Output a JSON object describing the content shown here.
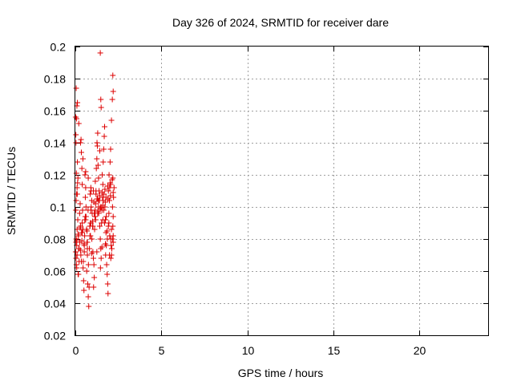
{
  "chart_data": {
    "type": "scatter",
    "title": "Day 326 of 2024, SRMTID for receiver dare",
    "xlabel": "GPS time / hours",
    "ylabel": "SRMTID / TECUs",
    "xlim": [
      0,
      24
    ],
    "ylim": [
      0.02,
      0.2
    ],
    "xticks": [
      0,
      5,
      10,
      15,
      20
    ],
    "yticks": [
      0.02,
      0.04,
      0.06,
      0.08,
      0.1,
      0.12,
      0.14,
      0.16,
      0.18,
      0.2
    ],
    "xtick_labels": [
      "0",
      "5",
      "10",
      "15",
      "20"
    ],
    "ytick_labels": [
      "0.02",
      "0.04",
      "0.06",
      "0.08",
      "0.1",
      "0.12",
      "0.14",
      "0.16",
      "0.18",
      "0.2"
    ],
    "grid": true,
    "marker": "+",
    "color": "#dd0000",
    "series": [
      {
        "x": [
          0.02,
          0.04,
          0.06,
          0.05,
          0.08,
          0.1,
          0.03,
          0.07,
          0.09,
          0.12,
          0.15,
          0.11,
          0.14,
          0.18,
          0.2,
          0.22,
          0.16,
          0.25,
          0.28,
          0.3,
          0.26,
          0.32,
          0.35,
          0.33,
          0.38,
          0.4,
          0.42,
          0.36,
          0.45,
          0.48,
          0.5,
          0.46,
          0.52,
          0.55,
          0.58,
          0.6,
          0.56,
          0.62,
          0.65,
          0.68,
          0.7,
          0.66,
          0.72,
          0.75,
          0.78,
          0.8,
          0.76,
          0.82,
          0.85,
          0.88,
          0.9,
          0.86,
          0.92,
          0.95,
          0.98,
          1.0,
          0.96,
          1.02,
          1.05,
          1.08,
          1.1,
          1.06,
          1.12,
          1.15,
          1.18,
          1.2,
          1.16,
          1.22,
          1.25,
          1.28,
          1.3,
          1.26,
          1.32,
          1.35,
          1.38,
          1.4,
          1.36,
          1.42,
          1.45,
          1.48,
          1.5,
          1.46,
          1.52,
          1.55,
          1.58,
          1.6,
          1.56,
          1.62,
          1.65,
          1.68,
          1.7,
          1.66,
          1.72,
          1.75,
          1.78,
          1.8,
          1.76,
          1.82,
          1.85,
          1.88,
          1.9,
          1.86,
          1.92,
          1.95,
          1.98,
          2.0,
          1.96,
          2.02,
          2.05,
          2.08,
          2.1,
          2.06,
          2.12,
          2.15,
          2.18,
          2.2,
          2.16,
          2.22,
          2.25,
          0.05,
          0.12,
          0.2,
          0.3,
          0.44,
          0.6,
          0.75,
          0.9,
          1.05,
          1.2,
          1.35,
          1.5,
          1.65,
          1.8,
          1.95,
          2.1,
          2.2,
          0.08,
          0.18,
          0.35,
          0.52,
          0.7,
          0.88,
          1.02,
          1.18,
          1.32,
          1.48,
          1.62,
          1.78,
          1.92,
          2.05,
          2.18,
          0.04,
          0.16,
          0.28,
          0.4,
          0.58,
          0.74,
          0.92,
          1.08,
          1.26,
          1.42,
          1.56,
          1.72,
          1.88,
          2.02,
          2.14,
          0.1,
          0.22,
          0.38,
          0.54,
          0.68,
          0.84,
          1.0,
          1.14,
          1.3,
          1.44,
          1.6,
          1.74,
          1.9,
          2.04,
          2.2,
          1.45,
          2.18,
          2.2,
          1.48,
          1.5,
          2.15,
          0.02,
          0.04,
          0.06,
          1.42,
          2.1,
          0.03,
          0.05,
          0.07,
          0.1,
          0.13,
          0.4,
          0.45,
          0.6,
          0.62,
          0.85,
          0.9,
          1.1,
          1.15,
          1.3,
          1.35,
          1.6,
          1.7,
          1.85,
          2.0,
          2.05,
          2.2,
          0.08,
          0.3,
          0.5,
          0.7,
          0.95,
          1.25,
          1.55,
          1.75,
          1.98,
          2.12
        ],
        "y": [
          0.072,
          0.068,
          0.064,
          0.08,
          0.076,
          0.086,
          0.145,
          0.155,
          0.163,
          0.128,
          0.118,
          0.108,
          0.092,
          0.082,
          0.074,
          0.066,
          0.058,
          0.096,
          0.102,
          0.088,
          0.078,
          0.07,
          0.134,
          0.142,
          0.124,
          0.114,
          0.098,
          0.084,
          0.062,
          0.054,
          0.048,
          0.066,
          0.076,
          0.092,
          0.106,
          0.112,
          0.12,
          0.1,
          0.086,
          0.078,
          0.07,
          0.06,
          0.052,
          0.044,
          0.038,
          0.05,
          0.064,
          0.074,
          0.082,
          0.09,
          0.098,
          0.108,
          0.11,
          0.104,
          0.096,
          0.088,
          0.08,
          0.072,
          0.068,
          0.064,
          0.056,
          0.05,
          0.086,
          0.094,
          0.102,
          0.11,
          0.116,
          0.124,
          0.13,
          0.138,
          0.146,
          0.14,
          0.126,
          0.118,
          0.11,
          0.104,
          0.096,
          0.088,
          0.08,
          0.074,
          0.068,
          0.062,
          0.09,
          0.098,
          0.106,
          0.114,
          0.12,
          0.128,
          0.136,
          0.144,
          0.15,
          0.108,
          0.1,
          0.092,
          0.084,
          0.076,
          0.07,
          0.064,
          0.058,
          0.052,
          0.046,
          0.08,
          0.088,
          0.096,
          0.104,
          0.112,
          0.12,
          0.128,
          0.136,
          0.076,
          0.07,
          0.068,
          0.074,
          0.08,
          0.088,
          0.094,
          0.1,
          0.106,
          0.112,
          0.174,
          0.165,
          0.152,
          0.14,
          0.13,
          0.122,
          0.118,
          0.112,
          0.11,
          0.108,
          0.104,
          0.1,
          0.098,
          0.094,
          0.09,
          0.086,
          0.082,
          0.062,
          0.058,
          0.066,
          0.072,
          0.078,
          0.082,
          0.088,
          0.092,
          0.097,
          0.1,
          0.104,
          0.106,
          0.11,
          0.114,
          0.118,
          0.078,
          0.083,
          0.087,
          0.09,
          0.094,
          0.098,
          0.1,
          0.103,
          0.105,
          0.107,
          0.109,
          0.111,
          0.113,
          0.115,
          0.117,
          0.07,
          0.074,
          0.079,
          0.082,
          0.085,
          0.088,
          0.091,
          0.094,
          0.096,
          0.099,
          0.101,
          0.103,
          0.105,
          0.107,
          0.109,
          0.196,
          0.182,
          0.172,
          0.167,
          0.162,
          0.167,
          0.156,
          0.14,
          0.121,
          0.135,
          0.154,
          0.098,
          0.104,
          0.108,
          0.112,
          0.115,
          0.084,
          0.086,
          0.092,
          0.094,
          0.088,
          0.09,
          0.096,
          0.098,
          0.105,
          0.1,
          0.092,
          0.09,
          0.085,
          0.082,
          0.08,
          0.078,
          0.079,
          0.073,
          0.077,
          0.074,
          0.071,
          0.072,
          0.075,
          0.077,
          0.07,
          0.074
        ]
      }
    ]
  }
}
